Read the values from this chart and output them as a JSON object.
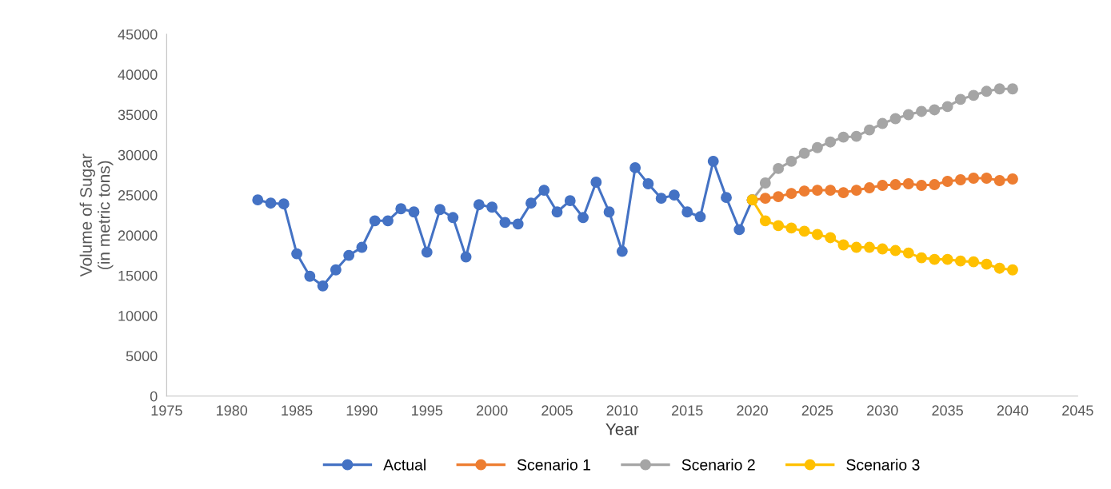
{
  "chart_data": {
    "type": "line",
    "xlabel": "Year",
    "ylabel": "Volume of Sugar\n(in metric tons)",
    "xlim": [
      1975,
      2045
    ],
    "xticks": [
      1975,
      1980,
      1985,
      1990,
      1995,
      2000,
      2005,
      2010,
      2015,
      2020,
      2025,
      2030,
      2035,
      2040,
      2045
    ],
    "ylim": [
      0,
      45000
    ],
    "yticks": [
      0,
      5000,
      10000,
      15000,
      20000,
      25000,
      30000,
      35000,
      40000,
      45000
    ],
    "grid": false,
    "legend": "bottom",
    "marker": "circle",
    "line_style": "solid",
    "series": [
      {
        "name": "Actual",
        "color": "#4472c4",
        "x": [
          1982,
          1983,
          1984,
          1985,
          1986,
          1987,
          1988,
          1989,
          1990,
          1991,
          1992,
          1993,
          1994,
          1995,
          1996,
          1997,
          1998,
          1999,
          2000,
          2001,
          2002,
          2003,
          2004,
          2005,
          2006,
          2007,
          2008,
          2009,
          2010,
          2011,
          2012,
          2013,
          2014,
          2015,
          2016,
          2017,
          2018,
          2019,
          2020
        ],
        "values": [
          24400,
          24000,
          23900,
          17700,
          14900,
          13700,
          15700,
          17500,
          18500,
          21800,
          21800,
          23300,
          22900,
          17900,
          23200,
          22200,
          17300,
          23800,
          23500,
          21600,
          21400,
          24000,
          25600,
          22900,
          24300,
          22200,
          26600,
          22900,
          18000,
          28400,
          26400,
          24600,
          25000,
          22900,
          22300,
          29200,
          24700,
          20700,
          24400
        ]
      },
      {
        "name": "Scenario 1",
        "color": "#ed7d31",
        "x": [
          2020,
          2021,
          2022,
          2023,
          2024,
          2025,
          2026,
          2027,
          2028,
          2029,
          2030,
          2031,
          2032,
          2033,
          2034,
          2035,
          2036,
          2037,
          2038,
          2039,
          2040
        ],
        "values": [
          24400,
          24600,
          24800,
          25200,
          25500,
          25600,
          25600,
          25300,
          25600,
          25900,
          26200,
          26300,
          26400,
          26200,
          26300,
          26700,
          26900,
          27100,
          27100,
          26800,
          27000
        ]
      },
      {
        "name": "Scenario 2",
        "color": "#a5a5a5",
        "x": [
          2020,
          2021,
          2022,
          2023,
          2024,
          2025,
          2026,
          2027,
          2028,
          2029,
          2030,
          2031,
          2032,
          2033,
          2034,
          2035,
          2036,
          2037,
          2038,
          2039,
          2040
        ],
        "values": [
          24400,
          26500,
          28300,
          29200,
          30200,
          30900,
          31600,
          32200,
          32300,
          33100,
          33900,
          34500,
          35000,
          35400,
          35600,
          36000,
          36900,
          37400,
          37900,
          38200,
          38200
        ]
      },
      {
        "name": "Scenario 3",
        "color": "#ffc000",
        "x": [
          2020,
          2021,
          2022,
          2023,
          2024,
          2025,
          2026,
          2027,
          2028,
          2029,
          2030,
          2031,
          2032,
          2033,
          2034,
          2035,
          2036,
          2037,
          2038,
          2039,
          2040
        ],
        "values": [
          24400,
          21800,
          21200,
          20900,
          20500,
          20100,
          19700,
          18800,
          18500,
          18500,
          18300,
          18100,
          17800,
          17200,
          17000,
          17000,
          16800,
          16700,
          16400,
          15900,
          15700
        ]
      }
    ]
  }
}
